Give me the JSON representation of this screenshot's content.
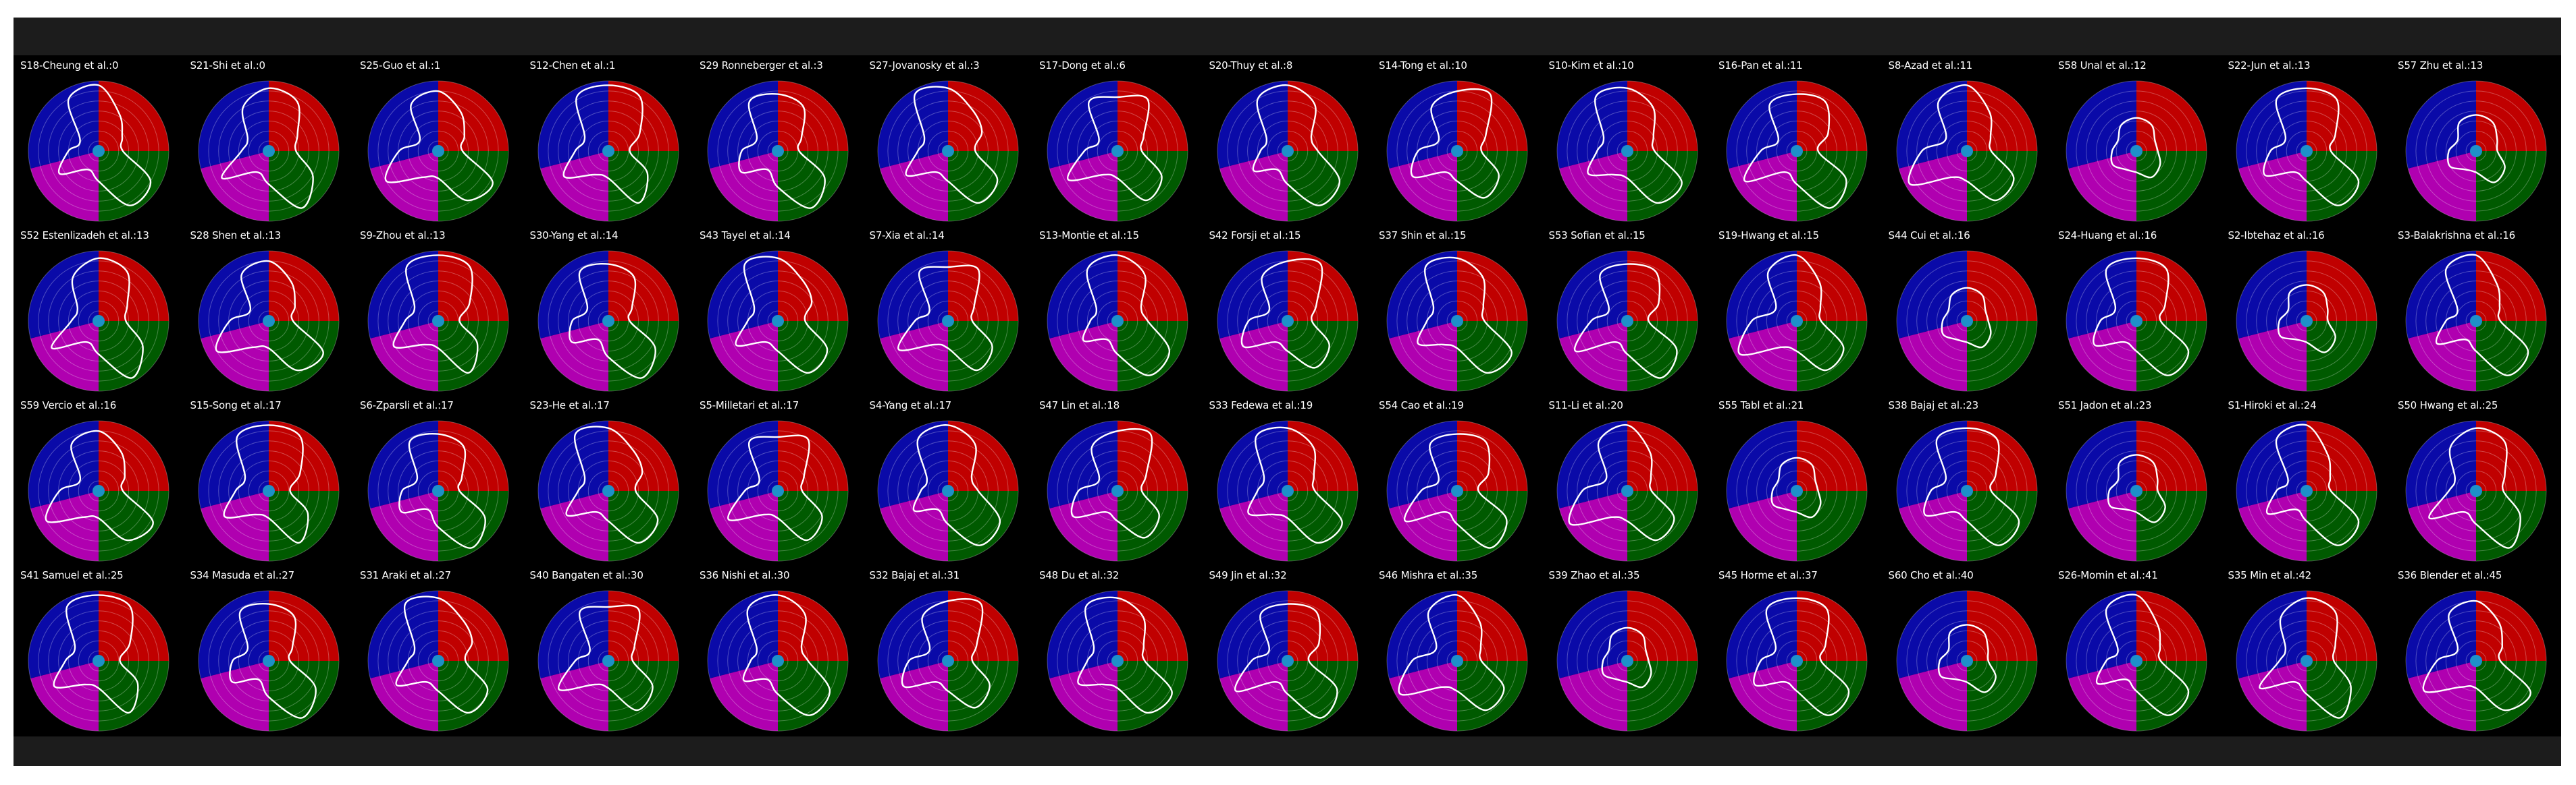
{
  "panels": [
    {
      "label": "S18-Cheung et al.:0",
      "shape": 0
    },
    {
      "label": "S21-Shi et al.:0",
      "shape": 1
    },
    {
      "label": "S25-Guo et al.:1",
      "shape": 2
    },
    {
      "label": "S12-Chen et al.:1",
      "shape": 3
    },
    {
      "label": "S29 Ronneberger et al.:3",
      "shape": 4
    },
    {
      "label": "S27-Jovanosky et al.:3",
      "shape": 5
    },
    {
      "label": "S17-Dong et al.:6",
      "shape": 6
    },
    {
      "label": "S20-Thuy et al.:8",
      "shape": 7
    },
    {
      "label": "S14-Tong et al.:10",
      "shape": 8
    },
    {
      "label": "S10-Kim et al.:10",
      "shape": 9
    },
    {
      "label": "S16-Pan et al.:11",
      "shape": 10
    },
    {
      "label": "S8-Azad et al.:11",
      "shape": 11
    },
    {
      "label": "S58 Unal et al.:12",
      "shape": 12
    },
    {
      "label": "S22-Jun et al.:13",
      "shape": 13
    },
    {
      "label": "S57 Zhu et al.:13",
      "shape": 14
    },
    {
      "label": "S52 Estenlizadeh et al.:13",
      "shape": 1
    },
    {
      "label": "S28 Shen et al.:13",
      "shape": 2
    },
    {
      "label": "S9-Zhou et al.:13",
      "shape": 3
    },
    {
      "label": "S30-Yang et al.:14",
      "shape": 4
    },
    {
      "label": "S43 Tayel et al.:14",
      "shape": 5
    },
    {
      "label": "S7-Xia et al.:14",
      "shape": 6
    },
    {
      "label": "S13-Montie et al.:15",
      "shape": 7
    },
    {
      "label": "S42 Forsji et al.:15",
      "shape": 8
    },
    {
      "label": "S37 Shin et al.:15",
      "shape": 9
    },
    {
      "label": "S53 Sofian et al.:15",
      "shape": 10
    },
    {
      "label": "S19-Hwang et al.:15",
      "shape": 11
    },
    {
      "label": "S44 Cui et al.:16",
      "shape": 12
    },
    {
      "label": "S24-Huang et al.:16",
      "shape": 13
    },
    {
      "label": "S2-Ibtehaz et al.:16",
      "shape": 14
    },
    {
      "label": "S3-Balakrishna et al.:16",
      "shape": 0
    },
    {
      "label": "S59 Vercio et al.:16",
      "shape": 2
    },
    {
      "label": "S15-Song et al.:17",
      "shape": 3
    },
    {
      "label": "S6-Zparsli et al.:17",
      "shape": 4
    },
    {
      "label": "S23-He et al.:17",
      "shape": 5
    },
    {
      "label": "S5-Milletari et al.:17",
      "shape": 6
    },
    {
      "label": "S4-Yang et al.:17",
      "shape": 7
    },
    {
      "label": "S47 Lin et al.:18",
      "shape": 8
    },
    {
      "label": "S33 Fedewa et al.:19",
      "shape": 9
    },
    {
      "label": "S54 Cao et al.:19",
      "shape": 10
    },
    {
      "label": "S11-Li et al.:20",
      "shape": 11
    },
    {
      "label": "S55 Tabl et al.:21",
      "shape": 12
    },
    {
      "label": "S38 Bajaj et al.:23",
      "shape": 13
    },
    {
      "label": "S51 Jadon et al.:23",
      "shape": 14
    },
    {
      "label": "S1-Hiroki et al.:24",
      "shape": 0
    },
    {
      "label": "S50 Hwang et al.:25",
      "shape": 1
    },
    {
      "label": "S41 Samuel et al.:25",
      "shape": 3
    },
    {
      "label": "S34 Masuda et al.:27",
      "shape": 4
    },
    {
      "label": "S31 Araki et al.:27",
      "shape": 5
    },
    {
      "label": "S40 Bangaten et al.:30",
      "shape": 6
    },
    {
      "label": "S36 Nishi et al.:30",
      "shape": 7
    },
    {
      "label": "S32 Bajaj et al.:31",
      "shape": 8
    },
    {
      "label": "S48 Du et al.:32",
      "shape": 9
    },
    {
      "label": "S49 Jin et al.:32",
      "shape": 10
    },
    {
      "label": "S46 Mishra et al.:35",
      "shape": 11
    },
    {
      "label": "S39 Zhao et al.:35",
      "shape": 12
    },
    {
      "label": "S45 Horme et al.:37",
      "shape": 13
    },
    {
      "label": "S60 Cho et al.:40",
      "shape": 14
    },
    {
      "label": "S26-Momin et al.:41",
      "shape": 0
    },
    {
      "label": "S35 Min et al.:42",
      "shape": 1
    },
    {
      "label": "S36 Blender et al.:45",
      "shape": 2
    }
  ],
  "colors": {
    "q_red": "#c00000",
    "q_green": "#005a00",
    "q_magenta": "#b000b0",
    "q_blue": "#0a0aa8",
    "center": "#1e90c8",
    "curve": "#ffffff"
  }
}
